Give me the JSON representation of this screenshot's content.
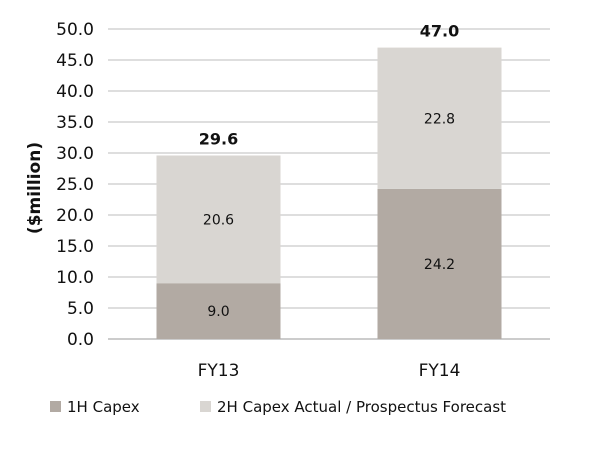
{
  "chart_data": {
    "type": "bar",
    "stacked": true,
    "categories": [
      "FY13",
      "FY14"
    ],
    "series": [
      {
        "name": "1H Capex",
        "values": [
          9.0,
          24.2
        ],
        "color": "#b2aaa3"
      },
      {
        "name": "2H Capex Actual / Prospectus Forecast",
        "values": [
          20.6,
          22.8
        ],
        "color": "#d9d6d2"
      }
    ],
    "totals": [
      29.6,
      47.0
    ],
    "ylabel": "($million)",
    "ylim": [
      0,
      50
    ],
    "yticks": [
      "0.0",
      "5.0",
      "10.0",
      "15.0",
      "20.0",
      "25.0",
      "30.0",
      "35.0",
      "40.0",
      "45.0",
      "50.0"
    ],
    "ytick_values": [
      0,
      5,
      10,
      15,
      20,
      25,
      30,
      35,
      40,
      45,
      50
    ],
    "grid": true,
    "legend_position": "bottom-left"
  }
}
